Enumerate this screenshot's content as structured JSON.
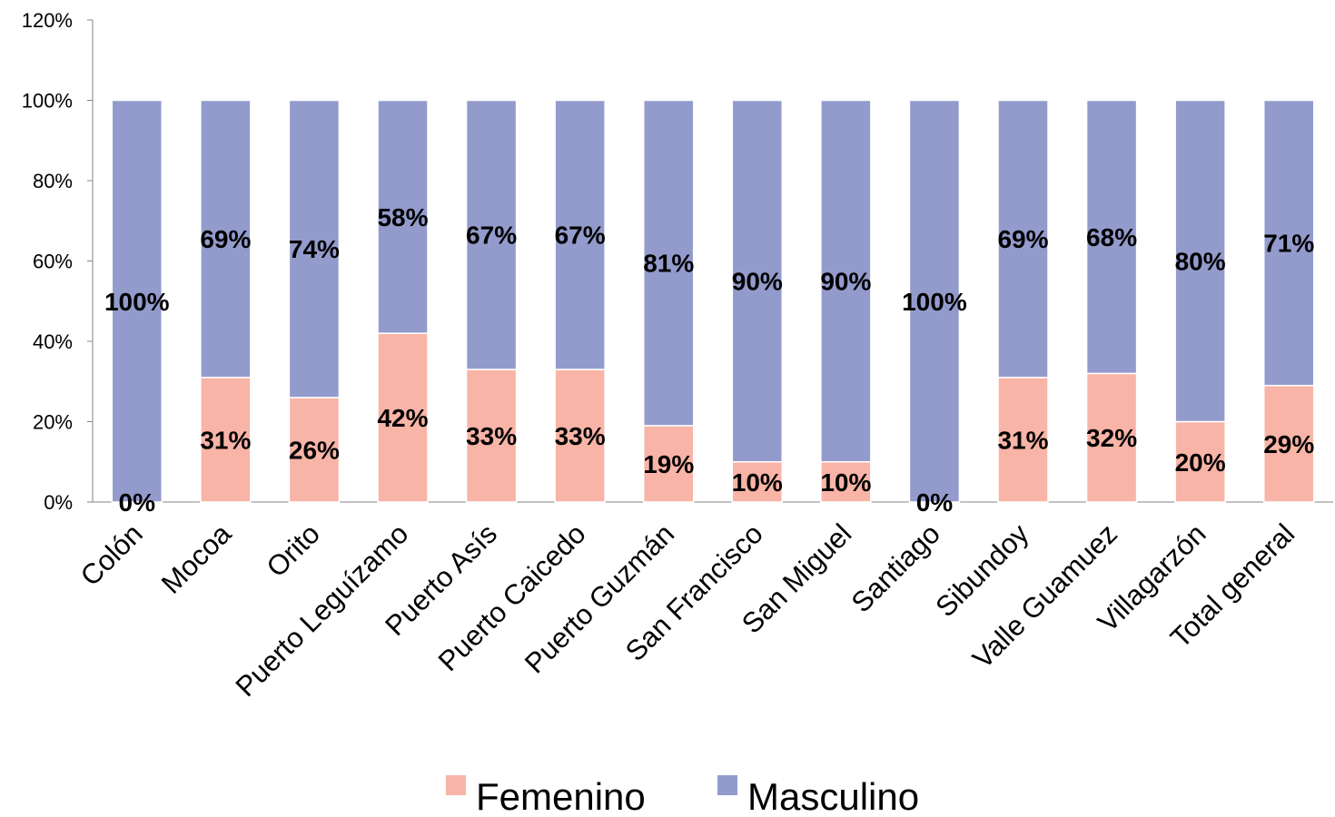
{
  "chart_data": {
    "type": "bar",
    "stacked": true,
    "categories": [
      "Colón",
      "Mocoa",
      "Orito",
      "Puerto  Leguízamo",
      "Puerto Asís",
      "Puerto Caicedo",
      "Puerto Guzmán",
      "San Francisco",
      "San Miguel",
      "Santiago",
      "Sibundoy",
      "Valle Guamuez",
      "Villagarzón",
      "Total general"
    ],
    "series": [
      {
        "name": "Femenino",
        "color": "#f8b4a6",
        "values": [
          0,
          31,
          26,
          42,
          33,
          33,
          19,
          10,
          10,
          0,
          31,
          32,
          20,
          29
        ],
        "labels": [
          "0%",
          "31%",
          "26%",
          "42%",
          "33%",
          "33%",
          "19%",
          "10%",
          "10%",
          "0%",
          "31%",
          "32%",
          "20%",
          "29%"
        ]
      },
      {
        "name": "Masculino",
        "color": "#939bcc",
        "values": [
          100,
          69,
          74,
          58,
          67,
          67,
          81,
          90,
          90,
          100,
          69,
          68,
          80,
          71
        ],
        "labels": [
          "100%",
          "69%",
          "74%",
          "58%",
          "67%",
          "67%",
          "81%",
          "90%",
          "90%",
          "100%",
          "69%",
          "68%",
          "80%",
          "71%"
        ]
      }
    ],
    "ylim": [
      0,
      120
    ],
    "yticks": [
      "0%",
      "20%",
      "40%",
      "60%",
      "80%",
      "100%",
      "120%"
    ],
    "grid": false,
    "legend_position": "bottom",
    "title": "",
    "xlabel": "",
    "ylabel": ""
  }
}
